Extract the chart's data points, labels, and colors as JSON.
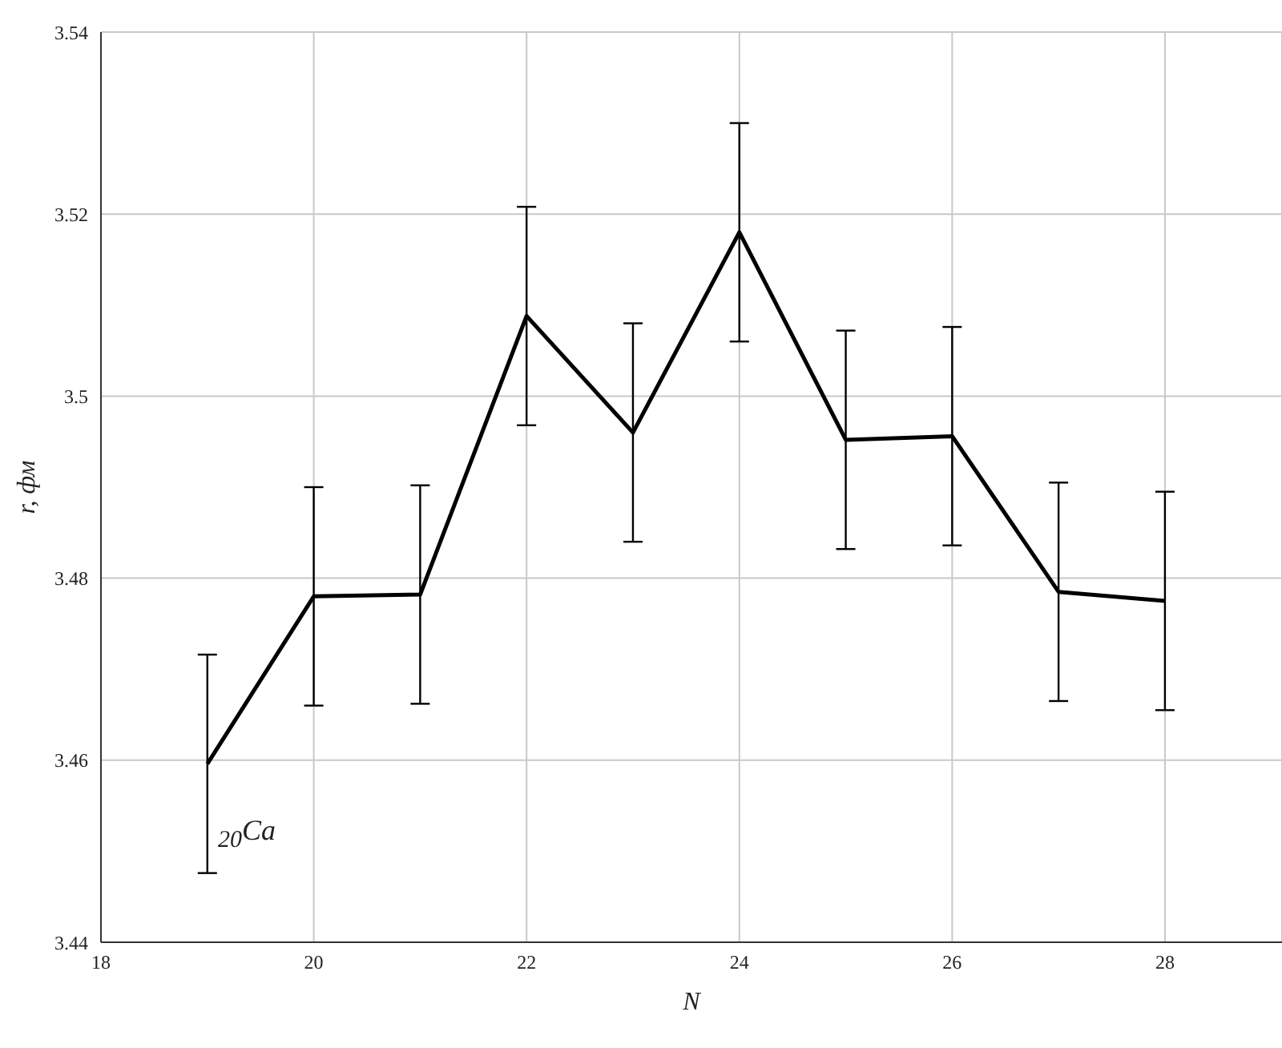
{
  "chart_data": {
    "type": "line",
    "xlabel": "N",
    "ylabel": "r, фм",
    "x": [
      19,
      20,
      21,
      22,
      23,
      24,
      25,
      26,
      27,
      28
    ],
    "series": [
      {
        "color": "#000000",
        "values": [
          3.4596,
          3.478,
          3.4782,
          3.5088,
          3.496,
          3.518,
          3.4952,
          3.4956,
          3.4785,
          3.4775
        ],
        "errors": [
          0.012,
          0.012,
          0.012,
          0.012,
          0.012,
          0.012,
          0.012,
          0.012,
          0.012,
          0.012
        ]
      }
    ],
    "xlim": [
      18,
      29.1
    ],
    "xticks": [
      18,
      20,
      22,
      24,
      26,
      28
    ],
    "ylim": [
      3.44,
      3.54
    ],
    "yticks": [
      3.44,
      3.46,
      3.48,
      3.5,
      3.52,
      3.54
    ],
    "grid": true,
    "marker": "none",
    "line_style": "solid",
    "annotations": [
      "$_{20}$Ca"
    ]
  }
}
